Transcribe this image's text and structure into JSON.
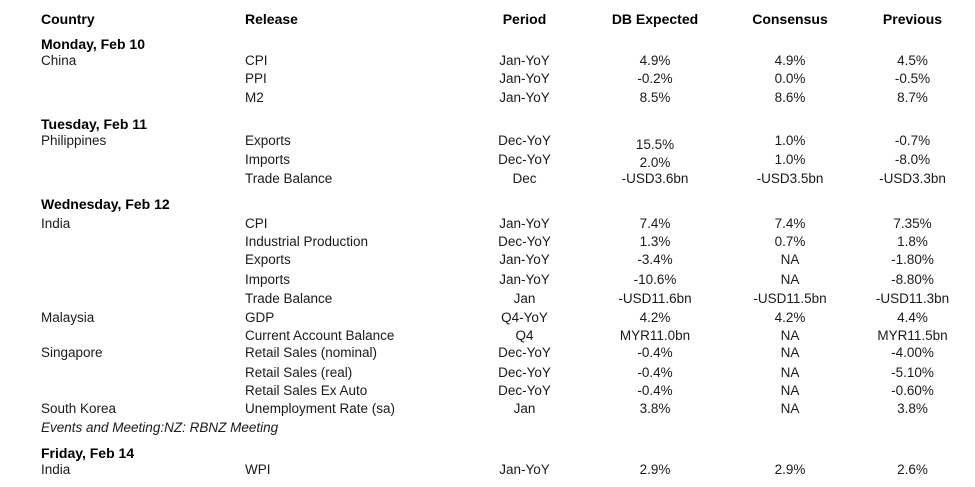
{
  "headers": {
    "country": "Country",
    "release": "Release",
    "period": "Period",
    "db_expected": "DB Expected",
    "consensus": "Consensus",
    "previous": "Previous"
  },
  "days": [
    {
      "label": "Monday, Feb 10"
    },
    {
      "label": "Tuesday, Feb 11"
    },
    {
      "label": "Wednesday, Feb 12"
    },
    {
      "label": "Friday, Feb 14"
    }
  ],
  "rows": [
    {
      "country": "China",
      "release": "CPI",
      "period": "Jan-YoY",
      "db": "4.9%",
      "cons": "4.9%",
      "prev": "4.5%"
    },
    {
      "country": "",
      "release": "PPI",
      "period": "Jan-YoY",
      "db": "-0.2%",
      "cons": "0.0%",
      "prev": "-0.5%"
    },
    {
      "country": "",
      "release": "M2",
      "period": "Jan-YoY",
      "db": "8.5%",
      "cons": "8.6%",
      "prev": "8.7%"
    },
    {
      "country": "Philippines",
      "release": "Exports",
      "period": "Dec-YoY",
      "db": "15.5%",
      "cons": "1.0%",
      "prev": "-0.7%"
    },
    {
      "country": "",
      "release": "Imports",
      "period": "Dec-YoY",
      "db": "2.0%",
      "cons": "1.0%",
      "prev": "-8.0%"
    },
    {
      "country": "",
      "release": "Trade Balance",
      "period": "Dec",
      "db": "-USD3.6bn",
      "cons": "-USD3.5bn",
      "prev": "-USD3.3bn"
    },
    {
      "country": "India",
      "release": "CPI",
      "period": "Jan-YoY",
      "db": "7.4%",
      "cons": "7.4%",
      "prev": "7.35%"
    },
    {
      "country": "",
      "release": "Industrial Production",
      "period": "Dec-YoY",
      "db": "1.3%",
      "cons": "0.7%",
      "prev": "1.8%"
    },
    {
      "country": "",
      "release": "Exports",
      "period": "Jan-YoY",
      "db": "-3.4%",
      "cons": "NA",
      "prev": "-1.80%"
    },
    {
      "country": "",
      "release": "Imports",
      "period": "Jan-YoY",
      "db": "-10.6%",
      "cons": "NA",
      "prev": "-8.80%"
    },
    {
      "country": "",
      "release": "Trade Balance",
      "period": "Jan",
      "db": "-USD11.6bn",
      "cons": "-USD11.5bn",
      "prev": "-USD11.3bn"
    },
    {
      "country": "Malaysia",
      "release": "GDP",
      "period": "Q4-YoY",
      "db": "4.2%",
      "cons": "4.2%",
      "prev": "4.4%"
    },
    {
      "country": "",
      "release": "Current Account Balance",
      "period": "Q4",
      "db": "MYR11.0bn",
      "cons": "NA",
      "prev": "MYR11.5bn"
    },
    {
      "country": "Singapore",
      "release": "Retail Sales (nominal)",
      "period": "Dec-YoY",
      "db": "-0.4%",
      "cons": "NA",
      "prev": "-4.00%"
    },
    {
      "country": "",
      "release": "Retail Sales (real)",
      "period": "Dec-YoY",
      "db": "-0.4%",
      "cons": "NA",
      "prev": "-5.10%"
    },
    {
      "country": "",
      "release": "Retail Sales Ex Auto",
      "period": "Dec-YoY",
      "db": "-0.4%",
      "cons": "NA",
      "prev": "-0.60%"
    },
    {
      "country": "South Korea",
      "release": "Unemployment Rate (sa)",
      "period": "Jan",
      "db": "3.8%",
      "cons": "NA",
      "prev": "3.8%"
    },
    {
      "country": "India",
      "release": "WPI",
      "period": "Jan-YoY",
      "db": "2.9%",
      "cons": "2.9%",
      "prev": "2.6%"
    }
  ],
  "note": "Events and Meeting:NZ: RBNZ Meeting"
}
